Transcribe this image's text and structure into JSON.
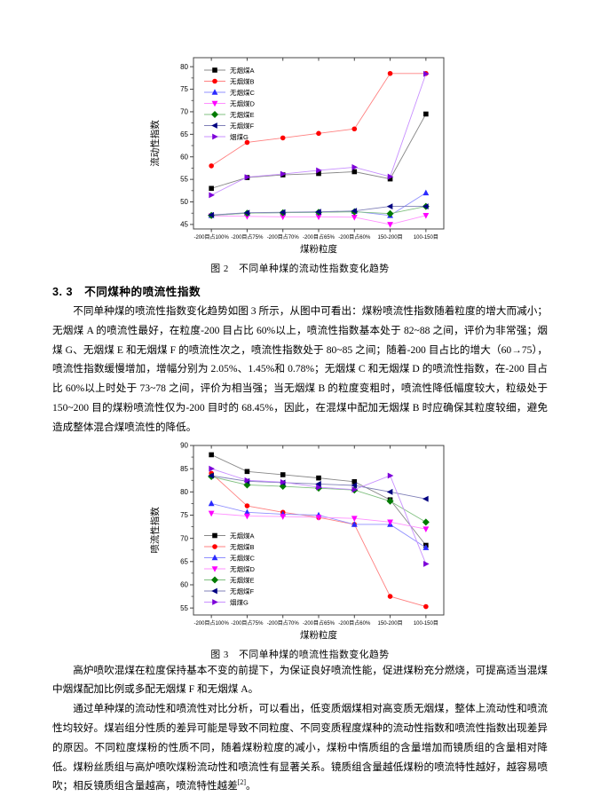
{
  "page": {
    "section_heading": "3. 3　不同煤种的喷流性指数",
    "para1": "不同单种煤的喷流性指数变化趋势如图 3 所示，从图中可看出：煤粉喷流性指数随着粒度的增大而减小；无烟煤 A 的喷流性最好，在粒度-200 目占比 60%以上，喷流性指数基本处于 82~88 之间，评价为非常强；烟煤 G、无烟煤 E 和无烟煤 F 的喷流性次之，喷流性指数处于 80~85 之间；随着-200 目占比的增大（60→75），喷流性指数缓慢增加，增幅分别为 2.05%、1.45%和 0.78%；无烟煤 C 和无烟煤 D 的喷流性指数，在-200 目占比 60%以上时处于 73~78 之间，评价为相当强；当无烟煤 B 的粒度变粗时，喷流性降低幅度较大，粒级处于 150~200 目的煤粉喷流性仅为-200 目时的 68.45%，因此，在混煤中配加无烟煤 B 时应确保其粒度较细，避免造成整体混合煤喷流性的降低。",
    "para2": "高炉喷吹混煤在粒度保持基本不变的前提下，为保证良好喷流性能，促进煤粉充分燃烧，可提高适当混煤中烟煤配加比例或多配无烟煤 F 和无烟煤 A。",
    "para3": "通过单种煤的流动性和喷流性对比分析，可以看出，低变质烟煤相对高变质无烟煤，整体上流动性和喷流性均较好。煤岩组分性质的差异可能是导致不同粒度、不同变质程度煤种的流动性指数和喷流性指数出现差异的原因。不同粒度煤粉的性质不同，随着煤粉粒度的减小，煤粉中惰质组的含量增加而镜质组的含量相对降低。煤粉丝质组与高炉喷吹煤粉流动性和喷流性有显著关系。镜质组含量越低煤粉的喷流特性越好，越容易喷吹；相反镜质组含量越高，喷流特性越差",
    "para3_ref": "[2]",
    "para3_end": "。",
    "fig2_caption": "图 2　不同单种煤的流动性指数变化趋势",
    "fig3_caption": "图 3　不同单种煤的喷流性指数变化趋势"
  },
  "chart_data": [
    {
      "type": "line",
      "title": "",
      "xlabel": "煤粉粒度",
      "ylabel": "流动性指数",
      "ylim": [
        44,
        82
      ],
      "yticks": [
        45,
        50,
        55,
        60,
        65,
        70,
        75,
        80
      ],
      "grid": false,
      "legend_position": "top-left",
      "categories": [
        "-200目占100%",
        "-200目占75%",
        "-200目占70%",
        "-200目占65%",
        "-200目占60%",
        "150-200目",
        "100-150目"
      ],
      "series": [
        {
          "name": "无烟煤A",
          "marker": "square",
          "color": "#000000",
          "line": "#888888",
          "values": [
            53.0,
            55.4,
            56.0,
            56.3,
            56.7,
            55.1,
            69.5
          ]
        },
        {
          "name": "无烟煤B",
          "marker": "circle",
          "color": "#ff0000",
          "line": "#ff8080",
          "values": [
            58.0,
            63.2,
            64.2,
            65.2,
            66.2,
            78.5,
            78.5
          ]
        },
        {
          "name": "无烟煤C",
          "marker": "tri-up",
          "color": "#2a2aff",
          "line": "#9090ff",
          "values": [
            47.0,
            47.5,
            47.6,
            47.7,
            47.9,
            47.0,
            52.0
          ]
        },
        {
          "name": "无烟煤D",
          "marker": "tri-down",
          "color": "#ff00ff",
          "line": "#ff90ff",
          "values": [
            46.9,
            46.8,
            46.7,
            46.7,
            46.6,
            45.0,
            47.0
          ]
        },
        {
          "name": "无烟煤E",
          "marker": "diamond",
          "color": "#007a00",
          "line": "#80c080",
          "values": [
            47.0,
            47.5,
            47.6,
            47.7,
            47.8,
            47.4,
            49.0
          ]
        },
        {
          "name": "无烟煤F",
          "marker": "tri-left",
          "color": "#000080",
          "line": "#8080b8",
          "values": [
            47.1,
            47.6,
            47.7,
            47.8,
            48.0,
            49.0,
            49.0
          ]
        },
        {
          "name": "烟煤G",
          "marker": "tri-right",
          "color": "#7d00d9",
          "line": "#c890ff",
          "values": [
            51.5,
            55.5,
            56.2,
            57.0,
            57.7,
            55.6,
            78.4
          ]
        }
      ]
    },
    {
      "type": "line",
      "title": "",
      "xlabel": "煤粉粒度",
      "ylabel": "喷流性指数",
      "ylim": [
        53.5,
        90
      ],
      "yticks": [
        55,
        60,
        65,
        70,
        75,
        80,
        85,
        90
      ],
      "grid": false,
      "legend_position": "bottom-left",
      "categories": [
        "-200目占100%",
        "-200目占75%",
        "-200目占70%",
        "-200目占65%",
        "-200目占60%",
        "150-200目",
        "100-150目"
      ],
      "series": [
        {
          "name": "无烟煤A",
          "marker": "square",
          "color": "#000000",
          "line": "#888888",
          "values": [
            88.0,
            84.4,
            83.7,
            83.0,
            82.2,
            78.3,
            68.5
          ]
        },
        {
          "name": "无烟煤B",
          "marker": "circle",
          "color": "#ff0000",
          "line": "#ff8080",
          "values": [
            84.0,
            77.0,
            75.6,
            74.5,
            73.0,
            57.5,
            55.3
          ]
        },
        {
          "name": "无烟煤C",
          "marker": "tri-up",
          "color": "#2a2aff",
          "line": "#9090ff",
          "values": [
            77.5,
            75.6,
            75.2,
            75.0,
            73.0,
            73.0,
            68.0
          ]
        },
        {
          "name": "无烟煤D",
          "marker": "tri-down",
          "color": "#ff00ff",
          "line": "#ff90ff",
          "values": [
            75.4,
            74.8,
            74.7,
            74.5,
            74.3,
            73.5,
            72.0
          ]
        },
        {
          "name": "无烟煤E",
          "marker": "diamond",
          "color": "#007a00",
          "line": "#80c080",
          "values": [
            83.3,
            81.5,
            81.2,
            80.8,
            80.4,
            78.0,
            73.5
          ]
        },
        {
          "name": "无烟煤F",
          "marker": "tri-left",
          "color": "#000080",
          "line": "#8080b8",
          "values": [
            83.5,
            82.3,
            82.0,
            81.7,
            81.4,
            80.0,
            78.5
          ]
        },
        {
          "name": "烟煤G",
          "marker": "tri-right",
          "color": "#7d00d9",
          "line": "#c890ff",
          "values": [
            85.0,
            82.5,
            82.1,
            81.0,
            80.5,
            83.5,
            64.5
          ]
        }
      ]
    }
  ]
}
